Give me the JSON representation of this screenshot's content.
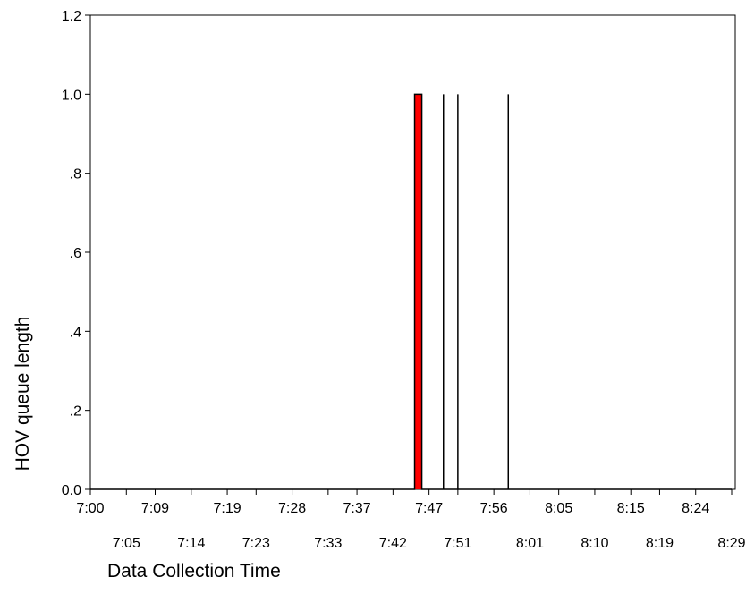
{
  "chart_data": {
    "type": "area",
    "title": "",
    "xlabel": "Data Collection Time",
    "ylabel": "HOV queue length",
    "ylim": [
      0,
      1.2
    ],
    "yticks": [
      {
        "value": 0.0,
        "label": "0.0"
      },
      {
        "value": 0.2,
        "label": ".2"
      },
      {
        "value": 0.4,
        "label": ".4"
      },
      {
        "value": 0.6,
        "label": ".6"
      },
      {
        "value": 0.8,
        "label": ".8"
      },
      {
        "value": 1.0,
        "label": "1.0"
      },
      {
        "value": 1.2,
        "label": "1.2"
      }
    ],
    "xticks_row1": [
      "7:00",
      "7:09",
      "7:19",
      "7:28",
      "7:37",
      "7:47",
      "7:56",
      "8:05",
      "8:15",
      "8:24"
    ],
    "xticks_row2": [
      "7:05",
      "7:14",
      "7:23",
      "7:33",
      "7:42",
      "7:51",
      "8:01",
      "8:10",
      "8:19",
      "8:29"
    ],
    "xlim_minutes_after_7": [
      0,
      89
    ],
    "grid": false,
    "fill_color": "#ff0000",
    "line_color": "#000000",
    "series": [
      {
        "x": [
          "7:00",
          "7:45",
          "7:45",
          "7:46",
          "7:46",
          "7:49",
          "7:49",
          "7:49",
          "7:49",
          "7:51",
          "7:51",
          "7:51",
          "7:51",
          "7:58",
          "7:58",
          "7:58",
          "7:58",
          "8:29"
        ],
        "values": [
          0,
          0,
          1,
          1,
          0,
          0,
          1,
          1,
          0,
          0,
          1,
          1,
          0,
          0,
          1,
          1,
          0,
          0
        ]
      }
    ]
  }
}
